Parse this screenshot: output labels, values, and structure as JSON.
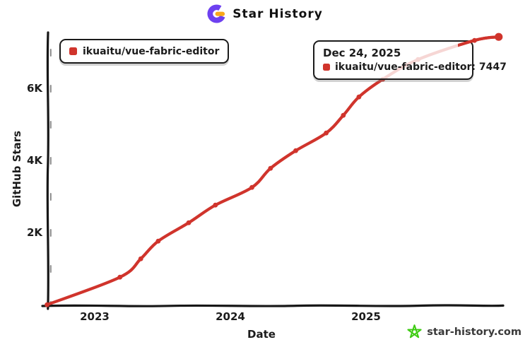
{
  "header": {
    "title": "Star History"
  },
  "logo_colors": {
    "purple": "#6d40f0",
    "orange": "#f8a71b"
  },
  "legend": {
    "series_label": "ikuaitu/vue-fabric-editor",
    "marker_color": "#d0342c"
  },
  "tooltip": {
    "date_label": "Dec 24, 2025",
    "series_label": "ikuaitu/vue-fabric-editor",
    "separator": ": ",
    "value": "7447",
    "marker_color": "#d0342c"
  },
  "watermark": {
    "text": "star-history.com",
    "star_color": "#3ecb13"
  },
  "chart_data": {
    "type": "line",
    "title": "Star History",
    "xlabel": "Date",
    "ylabel": "GitHub Stars",
    "background": "#ffffff",
    "grid": false,
    "legend_position": "top-left",
    "x_ticks": [
      {
        "label": "2023",
        "value": 2023
      },
      {
        "label": "2024",
        "value": 2024
      },
      {
        "label": "2025",
        "value": 2025
      }
    ],
    "y_ticks": [
      {
        "label": "2K",
        "value": 2000
      },
      {
        "label": "4K",
        "value": 4000
      },
      {
        "label": "6K",
        "value": 6000
      }
    ],
    "xlim": [
      "2022-08-26",
      "2026-01-01"
    ],
    "ylim": [
      0,
      7600
    ],
    "series": [
      {
        "name": "ikuaitu/vue-fabric-editor",
        "color": "#d0342c",
        "points": [
          {
            "date": "2022-08-26",
            "stars": 15
          },
          {
            "date": "2023-03-10",
            "stars": 780
          },
          {
            "date": "2023-05-05",
            "stars": 1290
          },
          {
            "date": "2023-06-21",
            "stars": 1780
          },
          {
            "date": "2023-09-11",
            "stars": 2290
          },
          {
            "date": "2023-11-22",
            "stars": 2780
          },
          {
            "date": "2024-02-28",
            "stars": 3270
          },
          {
            "date": "2024-04-18",
            "stars": 3800
          },
          {
            "date": "2024-06-25",
            "stars": 4290
          },
          {
            "date": "2024-09-15",
            "stars": 4780
          },
          {
            "date": "2024-10-31",
            "stars": 5270
          },
          {
            "date": "2024-12-12",
            "stars": 5780
          },
          {
            "date": "2025-02-15",
            "stars": 6270
          },
          {
            "date": "2025-05-21",
            "stars": 6820
          },
          {
            "date": "2025-10-20",
            "stars": 7350
          },
          {
            "date": "2025-12-24",
            "stars": 7447
          }
        ]
      }
    ],
    "highlight_point": {
      "date": "2025-12-24",
      "stars": 7447
    }
  }
}
